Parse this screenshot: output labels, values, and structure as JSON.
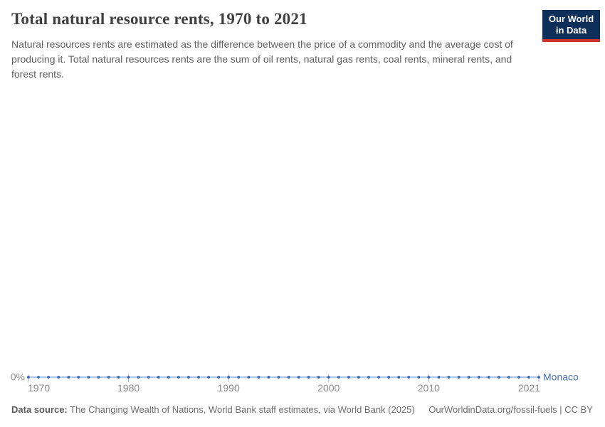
{
  "header": {
    "title": "Total natural resource rents, 1970 to 2021",
    "subtitle": "Natural resources rents are estimated as the difference between the price of a commodity and the average cost of producing it. Total natural resources rents are the sum of oil rents, natural gas rents, coal rents, mineral rents, and forest rents."
  },
  "logo": {
    "line1": "Our World",
    "line2": "in Data",
    "bg_color": "#0e2f5a",
    "accent_color": "#c9342e"
  },
  "chart_data": {
    "type": "line",
    "title": "Total natural resource rents, 1970 to 2021",
    "xlabel": "",
    "ylabel": "",
    "x_range": [
      1970,
      2021
    ],
    "ylim": [
      0,
      0
    ],
    "x_ticks": [
      1970,
      1980,
      1990,
      2000,
      2010,
      2021
    ],
    "y_tick_label": "0%",
    "grid": false,
    "legend_position": "end-of-line",
    "series": [
      {
        "name": "Monaco",
        "unit": "%",
        "marker_color": "#3d64a8",
        "line_color": "#b3c8e8",
        "label_color": "#4a70b5",
        "x": [
          1970,
          1971,
          1972,
          1973,
          1974,
          1975,
          1976,
          1977,
          1978,
          1979,
          1980,
          1981,
          1982,
          1983,
          1984,
          1985,
          1986,
          1987,
          1988,
          1989,
          1990,
          1991,
          1992,
          1993,
          1994,
          1995,
          1996,
          1997,
          1998,
          1999,
          2000,
          2001,
          2002,
          2003,
          2004,
          2005,
          2006,
          2007,
          2008,
          2009,
          2010,
          2011,
          2012,
          2013,
          2014,
          2015,
          2016,
          2017,
          2018,
          2019,
          2020,
          2021
        ],
        "values": [
          0,
          0,
          0,
          0,
          0,
          0,
          0,
          0,
          0,
          0,
          0,
          0,
          0,
          0,
          0,
          0,
          0,
          0,
          0,
          0,
          0,
          0,
          0,
          0,
          0,
          0,
          0,
          0,
          0,
          0,
          0,
          0,
          0,
          0,
          0,
          0,
          0,
          0,
          0,
          0,
          0,
          0,
          0,
          0,
          0,
          0,
          0,
          0,
          0,
          0,
          0,
          0
        ]
      }
    ],
    "tick_mark_color": "#a7b8d0"
  },
  "footer": {
    "source_label": "Data source:",
    "source_text": " The Changing Wealth of Nations, World Bank staff estimates, via World Bank (2025)",
    "link_text": "OurWorldinData.org/fossil-fuels",
    "separator": " | ",
    "license_text": "CC BY"
  },
  "colors": {
    "title": "#404040",
    "subtitle": "#616161",
    "axis_label": "#8c8c8c",
    "footer": "#6e6e6e"
  }
}
